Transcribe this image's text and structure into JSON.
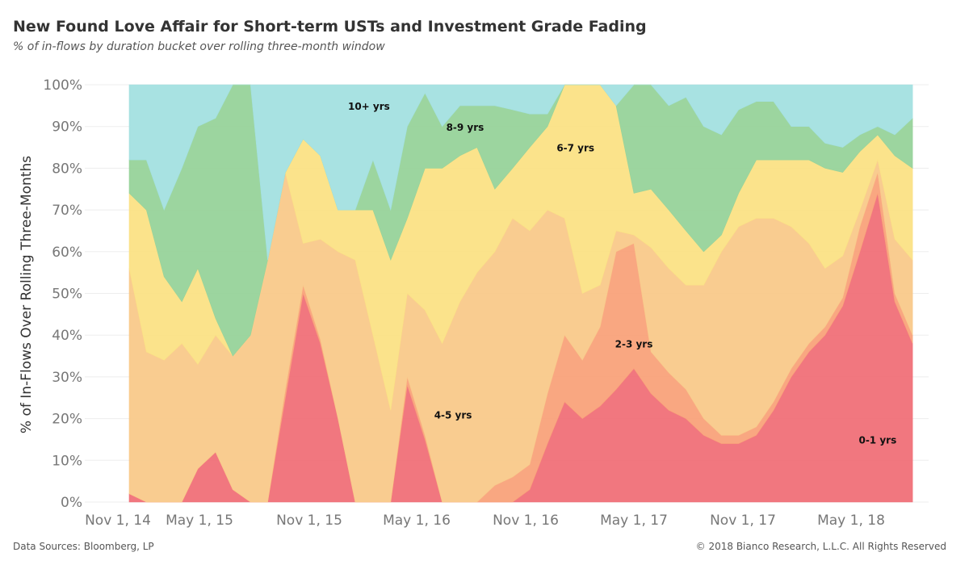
{
  "header": {
    "title": "New Found Love Affair for Short-term USTs and Investment Grade Fading",
    "subtitle": "% of in-flows by duration bucket over rolling three-month window"
  },
  "footer": {
    "source": "Data Sources: Bloomberg, LP",
    "copyright": "© 2018 Bianco Research, L.L.C. All Rights Reserved"
  },
  "chart_data": {
    "type": "area",
    "stacked": true,
    "title": "New Found Love Affair for Short-term USTs and Investment Grade Fading",
    "subtitle": "% of in-flows by duration bucket over rolling three-month window",
    "xlabel": "",
    "ylabel": "% of In-Flows Over Rolling Three-Months",
    "ylim": [
      0,
      100
    ],
    "xlim": [
      "2014-11-01",
      "2018-08-15"
    ],
    "x_ticks": [
      "Nov 1, 14",
      "May 1, 15",
      "Nov 1, 15",
      "May 1, 16",
      "Nov 1, 16",
      "May 1, 17",
      "Nov 1, 17",
      "May 1, 18"
    ],
    "y_ticks": [
      "0%",
      "10%",
      "20%",
      "30%",
      "40%",
      "50%",
      "60%",
      "70%",
      "80%",
      "90%",
      "100%"
    ],
    "grid": true,
    "x": [
      "2014-11-01",
      "2014-12-01",
      "2015-01-01",
      "2015-02-01",
      "2015-03-01",
      "2015-04-01",
      "2015-05-01",
      "2015-06-01",
      "2015-07-01",
      "2015-08-01",
      "2015-09-01",
      "2015-10-01",
      "2015-11-01",
      "2015-12-01",
      "2016-01-01",
      "2016-02-01",
      "2016-03-01",
      "2016-04-01",
      "2016-05-01",
      "2016-06-01",
      "2016-07-01",
      "2016-08-01",
      "2016-09-01",
      "2016-10-01",
      "2016-11-01",
      "2016-12-01",
      "2017-01-01",
      "2017-02-01",
      "2017-03-01",
      "2017-04-01",
      "2017-05-01",
      "2017-06-01",
      "2017-07-01",
      "2017-08-01",
      "2017-09-01",
      "2017-10-01",
      "2017-11-01",
      "2017-12-01",
      "2018-01-01",
      "2018-02-01",
      "2018-03-01",
      "2018-04-01",
      "2018-05-01",
      "2018-06-01",
      "2018-07-01",
      "2018-08-01"
    ],
    "series": [
      {
        "name": "0-1 yrs",
        "color": "#f07078",
        "values": [
          2,
          0,
          0,
          0,
          8,
          12,
          3,
          0,
          0,
          25,
          50,
          38,
          20,
          0,
          0,
          0,
          28,
          15,
          0,
          0,
          0,
          0,
          0,
          3,
          14,
          24,
          20,
          23,
          27,
          32,
          26,
          22,
          20,
          16,
          14,
          14,
          16,
          22,
          30,
          36,
          40,
          47,
          60,
          74,
          48,
          38
        ]
      },
      {
        "name": "2-3 yrs",
        "color": "#f9a27a",
        "values": [
          0,
          0,
          0,
          0,
          0,
          0,
          0,
          0,
          0,
          2,
          2,
          1,
          0,
          0,
          0,
          0,
          2,
          1,
          0,
          0,
          0,
          4,
          6,
          6,
          12,
          16,
          14,
          19,
          33,
          30,
          10,
          9,
          7,
          4,
          2,
          2,
          2,
          2,
          2,
          2,
          2,
          2,
          6,
          5,
          2,
          2
        ]
      },
      {
        "name": "4-5 yrs",
        "color": "#f9c98a",
        "values": [
          54,
          36,
          34,
          38,
          25,
          28,
          32,
          40,
          58,
          52,
          10,
          24,
          40,
          58,
          40,
          22,
          20,
          30,
          38,
          48,
          55,
          56,
          62,
          56,
          44,
          28,
          16,
          10,
          5,
          2,
          25,
          25,
          25,
          32,
          44,
          50,
          50,
          44,
          34,
          24,
          14,
          10,
          4,
          3,
          13,
          18
        ]
      },
      {
        "name": "6-7 yrs",
        "color": "#fbe285",
        "values": [
          18,
          34,
          20,
          10,
          23,
          4,
          0,
          0,
          0,
          0,
          25,
          20,
          10,
          12,
          30,
          36,
          18,
          34,
          42,
          35,
          30,
          15,
          12,
          20,
          20,
          32,
          50,
          48,
          30,
          10,
          14,
          14,
          13,
          8,
          4,
          8,
          14,
          14,
          16,
          20,
          24,
          20,
          14,
          6,
          20,
          22
        ]
      },
      {
        "name": "8-9 yrs",
        "color": "#97d39a",
        "values": [
          8,
          12,
          16,
          32,
          34,
          48,
          65,
          60,
          0,
          0,
          0,
          0,
          0,
          0,
          12,
          12,
          22,
          18,
          10,
          12,
          10,
          20,
          14,
          8,
          3,
          0,
          0,
          0,
          0,
          26,
          30,
          25,
          32,
          30,
          24,
          20,
          14,
          14,
          8,
          8,
          6,
          6,
          4,
          2,
          5,
          12
        ]
      },
      {
        "name": "10+ yrs",
        "color": "#a3e0e0",
        "values": [
          18,
          18,
          30,
          20,
          10,
          8,
          0,
          0,
          42,
          21,
          13,
          17,
          30,
          30,
          18,
          30,
          10,
          2,
          10,
          5,
          5,
          5,
          6,
          7,
          7,
          0,
          0,
          0,
          5,
          0,
          0,
          5,
          3,
          10,
          12,
          6,
          4,
          4,
          10,
          10,
          14,
          15,
          12,
          10,
          12,
          8
        ]
      }
    ],
    "band_labels": [
      {
        "text": "10+ yrs",
        "series": "10+ yrs",
        "x": "2015-12-25",
        "y": 94
      },
      {
        "text": "8-9 yrs",
        "series": "8-9 yrs",
        "x": "2016-06-10",
        "y": 89
      },
      {
        "text": "6-7 yrs",
        "series": "6-7 yrs",
        "x": "2016-12-20",
        "y": 84
      },
      {
        "text": "2-3 yrs",
        "series": "2-3 yrs",
        "x": "2017-04-01",
        "y": 37
      },
      {
        "text": "4-5 yrs",
        "series": "4-5 yrs",
        "x": "2016-05-20",
        "y": 20
      },
      {
        "text": "0-1 yrs",
        "series": "0-1 yrs",
        "x": "2018-06-01",
        "y": 14
      }
    ]
  }
}
